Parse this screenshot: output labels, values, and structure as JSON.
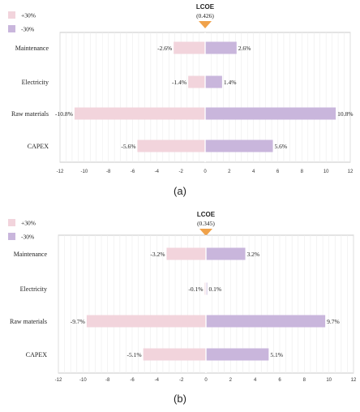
{
  "chart_data": [
    {
      "type": "bar",
      "panel_label": "(a)",
      "reference_label": "LCOE",
      "reference_value": "(0.426)",
      "categories": [
        "Maintenance",
        "Electricity",
        "Raw materials",
        "CAPEX"
      ],
      "series": [
        {
          "name": "+30%",
          "color": "#f2d4dc",
          "values": [
            -2.6,
            -1.4,
            -10.8,
            -5.6
          ],
          "labels": [
            "-2.6%",
            "-1.4%",
            "-10.8%",
            "-5.6%"
          ]
        },
        {
          "name": "-30%",
          "color": "#c9b6dc",
          "values": [
            2.6,
            1.4,
            10.8,
            5.6
          ],
          "labels": [
            "2.6%",
            "1.4%",
            "10.8%",
            "5.6%"
          ]
        }
      ],
      "xlim": [
        -12,
        12
      ],
      "xticks": [
        "-12",
        "-10",
        "-8",
        "-6",
        "-4",
        "-2",
        "0",
        "2",
        "4",
        "6",
        "8",
        "10",
        "12"
      ],
      "grid": true,
      "legend": "top-left"
    },
    {
      "type": "bar",
      "panel_label": "(b)",
      "reference_label": "LCOE",
      "reference_value": "(0.345)",
      "categories": [
        "Maintenance",
        "Electricity",
        "Raw materials",
        "CAPEX"
      ],
      "series": [
        {
          "name": "+30%",
          "color": "#f2d4dc",
          "values": [
            -3.2,
            -0.1,
            -9.7,
            -5.1
          ],
          "labels": [
            "-3.2%",
            "-0.1%",
            "-9.7%",
            "-5.1%"
          ]
        },
        {
          "name": "-30%",
          "color": "#c9b6dc",
          "values": [
            3.2,
            0.1,
            9.7,
            5.1
          ],
          "labels": [
            "3.2%",
            "0.1%",
            "9.7%",
            "5.1%"
          ]
        }
      ],
      "xlim": [
        -12,
        12
      ],
      "xticks": [
        "-12",
        "-10",
        "-8",
        "-6",
        "-4",
        "-2",
        "0",
        "2",
        "4",
        "6",
        "8",
        "10",
        "12"
      ],
      "grid": true,
      "legend": "top-left"
    }
  ]
}
